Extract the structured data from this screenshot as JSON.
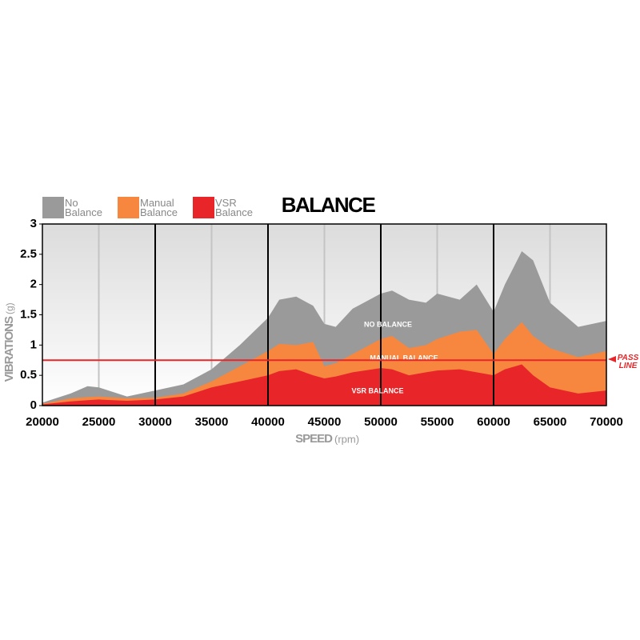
{
  "chart_data": {
    "type": "area",
    "title": "BALANCE",
    "xlabel": "SPEED",
    "xlabel_unit": "(rpm)",
    "ylabel": "VIBRATIONS",
    "ylabel_unit": "(g)",
    "x": [
      20000,
      22500,
      24000,
      25000,
      27500,
      30000,
      32500,
      35000,
      37500,
      40000,
      41000,
      42500,
      44000,
      45000,
      46000,
      47500,
      50000,
      51000,
      52500,
      54000,
      55000,
      57000,
      58500,
      60000,
      61000,
      62500,
      63500,
      65000,
      67500,
      70000
    ],
    "series": [
      {
        "name": "No Balance",
        "color": "#9a9a9a",
        "annotation": "NO BALANCE",
        "values": [
          0.05,
          0.2,
          0.32,
          0.3,
          0.15,
          0.25,
          0.35,
          0.6,
          1.0,
          1.45,
          1.75,
          1.8,
          1.65,
          1.35,
          1.3,
          1.6,
          1.85,
          1.9,
          1.75,
          1.7,
          1.85,
          1.75,
          2.0,
          1.55,
          2.0,
          2.55,
          2.4,
          1.7,
          1.3,
          1.4
        ]
      },
      {
        "name": "Manual Balance",
        "color": "#f7873e",
        "annotation": "MANUAL BALANCE",
        "values": [
          0.03,
          0.12,
          0.14,
          0.15,
          0.12,
          0.13,
          0.2,
          0.4,
          0.65,
          0.9,
          1.02,
          1.0,
          1.05,
          0.65,
          0.7,
          0.85,
          1.1,
          1.15,
          0.95,
          1.0,
          1.1,
          1.22,
          1.25,
          0.85,
          1.1,
          1.38,
          1.15,
          0.95,
          0.8,
          0.9
        ]
      },
      {
        "name": "VSR Balance",
        "color": "#e8262a",
        "annotation": "VSR BALANCE",
        "values": [
          0.02,
          0.07,
          0.09,
          0.1,
          0.08,
          0.1,
          0.15,
          0.3,
          0.4,
          0.5,
          0.57,
          0.6,
          0.5,
          0.45,
          0.48,
          0.55,
          0.62,
          0.6,
          0.5,
          0.55,
          0.58,
          0.6,
          0.55,
          0.5,
          0.6,
          0.68,
          0.5,
          0.3,
          0.2,
          0.25
        ]
      }
    ],
    "pass_line": {
      "value": 0.75,
      "label": "PASS LINE",
      "color": "#e8262a"
    },
    "xlim": [
      20000,
      70000
    ],
    "xticks": [
      20000,
      25000,
      30000,
      35000,
      40000,
      45000,
      50000,
      55000,
      60000,
      65000,
      70000
    ],
    "ylim": [
      0,
      3
    ],
    "yticks": [
      0,
      0.5,
      1,
      1.5,
      2,
      2.5,
      3
    ],
    "grid": true,
    "legend": "top-left"
  }
}
